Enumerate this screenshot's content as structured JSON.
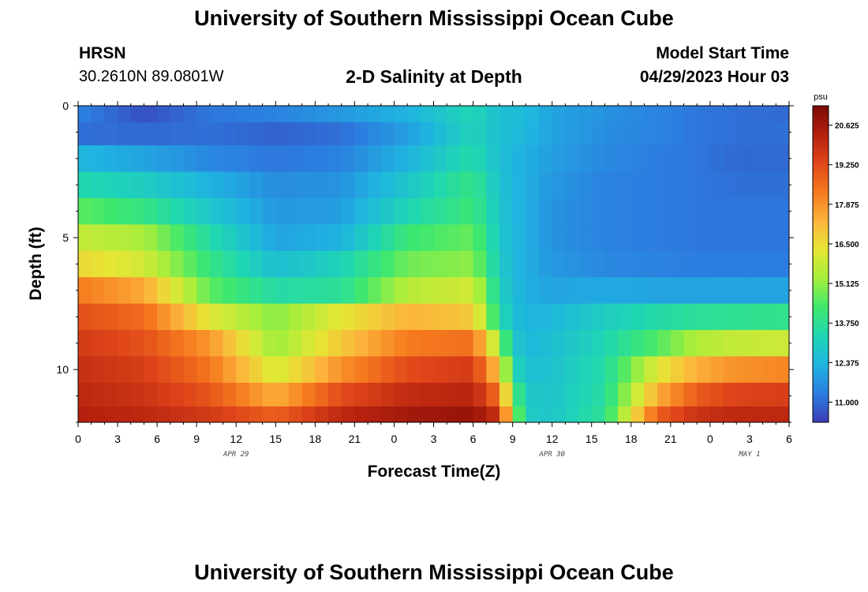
{
  "page": {
    "title_top": "University of Southern Mississippi Ocean Cube",
    "title_bottom": "University of Southern Mississippi Ocean Cube",
    "station": "HRSN",
    "coords": "30.2610N  89.0801W",
    "chart_title": "2-D Salinity at Depth",
    "model_label": "Model Start Time",
    "model_time": "04/29/2023 Hour 03"
  },
  "chart_data": {
    "type": "heatmap",
    "title": "2-D Salinity at Depth",
    "xlabel": "Forecast Time(Z)",
    "ylabel": "Depth (ft)",
    "x_ticks": [
      "0",
      "3",
      "6",
      "9",
      "12",
      "15",
      "18",
      "21",
      "0",
      "3",
      "6",
      "9",
      "12",
      "15",
      "18",
      "21",
      "0",
      "3",
      "6"
    ],
    "x_range_hours": [
      0,
      54
    ],
    "y_ticks": [
      "0",
      "5",
      "10"
    ],
    "y_range_ft": [
      0,
      12
    ],
    "date_labels": [
      {
        "text": "APR 29",
        "hour": 12
      },
      {
        "text": "APR 30",
        "hour": 36
      },
      {
        "text": "MAY 1",
        "hour": 51
      }
    ],
    "colorbar": {
      "unit": "psu",
      "min": 10.3,
      "max": 21.3,
      "ticks": [
        "20.625",
        "19.250",
        "17.875",
        "16.500",
        "15.125",
        "13.750",
        "12.375",
        "11.000"
      ],
      "colors": [
        "#3c3cb4",
        "#2c7de0",
        "#1fb4e0",
        "#1fd6b4",
        "#3ee86e",
        "#a4ee3c",
        "#e6e634",
        "#fcb43c",
        "#f57a1e",
        "#e0461a",
        "#b4200e",
        "#7a0a06"
      ]
    },
    "depth_rows_ft": [
      0.25,
      1.0,
      2.0,
      3.0,
      4.0,
      5.0,
      6.0,
      7.0,
      8.0,
      9.0,
      10.0,
      11.0,
      11.8
    ],
    "time_knots_hours": [
      0,
      5,
      10,
      15,
      20,
      25,
      30,
      32,
      33,
      34,
      36,
      40,
      44,
      47,
      50,
      54
    ],
    "salinity_psu": [
      [
        11.4,
        10.6,
        11.2,
        11.4,
        11.8,
        12.3,
        13.3,
        12.6,
        12.5,
        12.5,
        12.0,
        11.7,
        11.4,
        11.2,
        11.1,
        11.0
      ],
      [
        11.1,
        11.0,
        11.1,
        10.9,
        11.1,
        11.9,
        13.2,
        12.6,
        12.5,
        12.4,
        12.0,
        11.6,
        11.4,
        11.2,
        11.1,
        11.1
      ],
      [
        12.4,
        12.0,
        11.5,
        11.2,
        11.4,
        12.3,
        13.5,
        12.6,
        12.4,
        12.2,
        11.9,
        11.5,
        11.3,
        11.2,
        11.0,
        11.0
      ],
      [
        13.4,
        13.0,
        12.3,
        11.6,
        11.7,
        12.8,
        14.0,
        12.7,
        12.4,
        12.2,
        11.8,
        11.4,
        11.3,
        11.2,
        11.1,
        11.1
      ],
      [
        14.6,
        14.0,
        12.8,
        11.8,
        11.9,
        13.3,
        14.2,
        12.8,
        12.4,
        12.2,
        11.7,
        11.4,
        11.3,
        11.2,
        11.2,
        11.2
      ],
      [
        15.8,
        15.4,
        13.5,
        12.0,
        12.3,
        14.2,
        14.7,
        12.9,
        12.4,
        12.2,
        11.7,
        11.4,
        11.3,
        11.2,
        11.2,
        11.2
      ],
      [
        16.6,
        16.0,
        14.0,
        12.6,
        13.2,
        14.8,
        15.1,
        13.0,
        12.4,
        12.2,
        11.8,
        11.5,
        11.4,
        11.3,
        11.3,
        11.3
      ],
      [
        18.3,
        17.5,
        14.6,
        13.5,
        13.7,
        15.6,
        16.0,
        13.2,
        12.5,
        12.2,
        12.0,
        12.1,
        12.0,
        12.0,
        12.0,
        12.0
      ],
      [
        19.1,
        18.6,
        16.2,
        15.0,
        16.3,
        17.3,
        16.9,
        13.6,
        12.6,
        12.3,
        12.4,
        13.0,
        13.5,
        13.7,
        13.8,
        13.9
      ],
      [
        19.6,
        19.1,
        17.8,
        15.2,
        16.9,
        18.3,
        18.5,
        15.2,
        13.0,
        12.4,
        12.6,
        13.3,
        14.5,
        15.5,
        15.8,
        15.9
      ],
      [
        19.9,
        19.5,
        18.4,
        16.0,
        17.9,
        19.2,
        19.6,
        16.8,
        13.6,
        12.6,
        12.7,
        13.5,
        16.2,
        17.4,
        17.9,
        18.1
      ],
      [
        20.1,
        19.8,
        19.0,
        17.4,
        19.2,
        20.0,
        20.2,
        18.4,
        14.8,
        12.9,
        12.8,
        13.6,
        17.4,
        18.9,
        19.4,
        19.5
      ],
      [
        20.3,
        20.1,
        19.6,
        18.8,
        20.1,
        20.6,
        20.8,
        19.8,
        15.8,
        13.0,
        12.8,
        13.8,
        18.8,
        19.8,
        20.1,
        20.1
      ]
    ]
  }
}
